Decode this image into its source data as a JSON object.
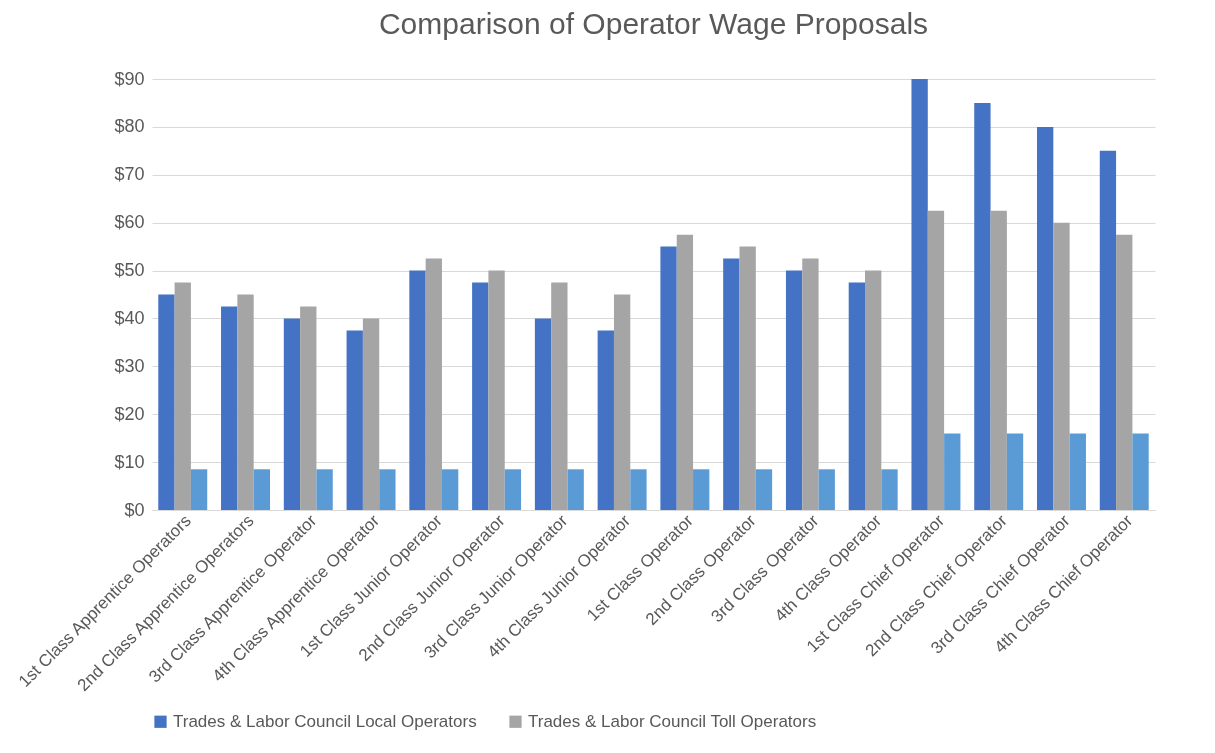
{
  "chart_data": {
    "type": "bar",
    "title": "Comparison of Operator Wage Proposals",
    "categories": [
      "1st Class Apprentice Operators",
      "2nd Class Apprentice Operators",
      "3rd Class Apprentice Operator",
      "4th Class Apprentice Operator",
      "1st Class Junior Operator",
      "2nd Class Junior Operator",
      "3rd Class Junior Operator",
      "4th Class Junior Operator",
      "1st Class Operator",
      "2nd Class Operator",
      "3rd Class Operator",
      "4th Class Operator",
      "1st Class Chief Operator",
      "2nd Class Chief Operator",
      "3rd Class Chief Operator",
      "4th Class Chief Operator"
    ],
    "series": [
      {
        "name": "Trades & Labor Council Local Operators",
        "color": "#4472c4",
        "values": [
          45,
          42.5,
          40,
          37.5,
          50,
          47.5,
          40,
          37.5,
          55,
          52.5,
          50,
          47.5,
          90,
          85,
          80,
          75
        ]
      },
      {
        "name": "Trades & Labor Council Toll Operators",
        "color": "#a5a5a5",
        "values": [
          47.5,
          45,
          42.5,
          40,
          52.5,
          50,
          47.5,
          45,
          57.5,
          55,
          52.5,
          50,
          62.5,
          62.5,
          60,
          57.5
        ]
      },
      {
        "color": "#5b9bd5",
        "values": [
          8.5,
          8.5,
          8.5,
          8.5,
          8.5,
          8.5,
          8.5,
          8.5,
          8.5,
          8.5,
          8.5,
          8.5,
          16,
          16,
          16,
          16
        ]
      }
    ],
    "ylim": [
      0,
      90
    ],
    "yticks": [
      {
        "value": 0,
        "label": "$0"
      },
      {
        "value": 10,
        "label": "$10"
      },
      {
        "value": 20,
        "label": "$20"
      },
      {
        "value": 30,
        "label": "$30"
      },
      {
        "value": 40,
        "label": "$40"
      },
      {
        "value": 50,
        "label": "$50"
      },
      {
        "value": 60,
        "label": "$60"
      },
      {
        "value": 70,
        "label": "$70"
      },
      {
        "value": 80,
        "label": "$80"
      },
      {
        "value": 90,
        "label": "$90"
      }
    ],
    "grid": "y",
    "legend": "bottom"
  }
}
